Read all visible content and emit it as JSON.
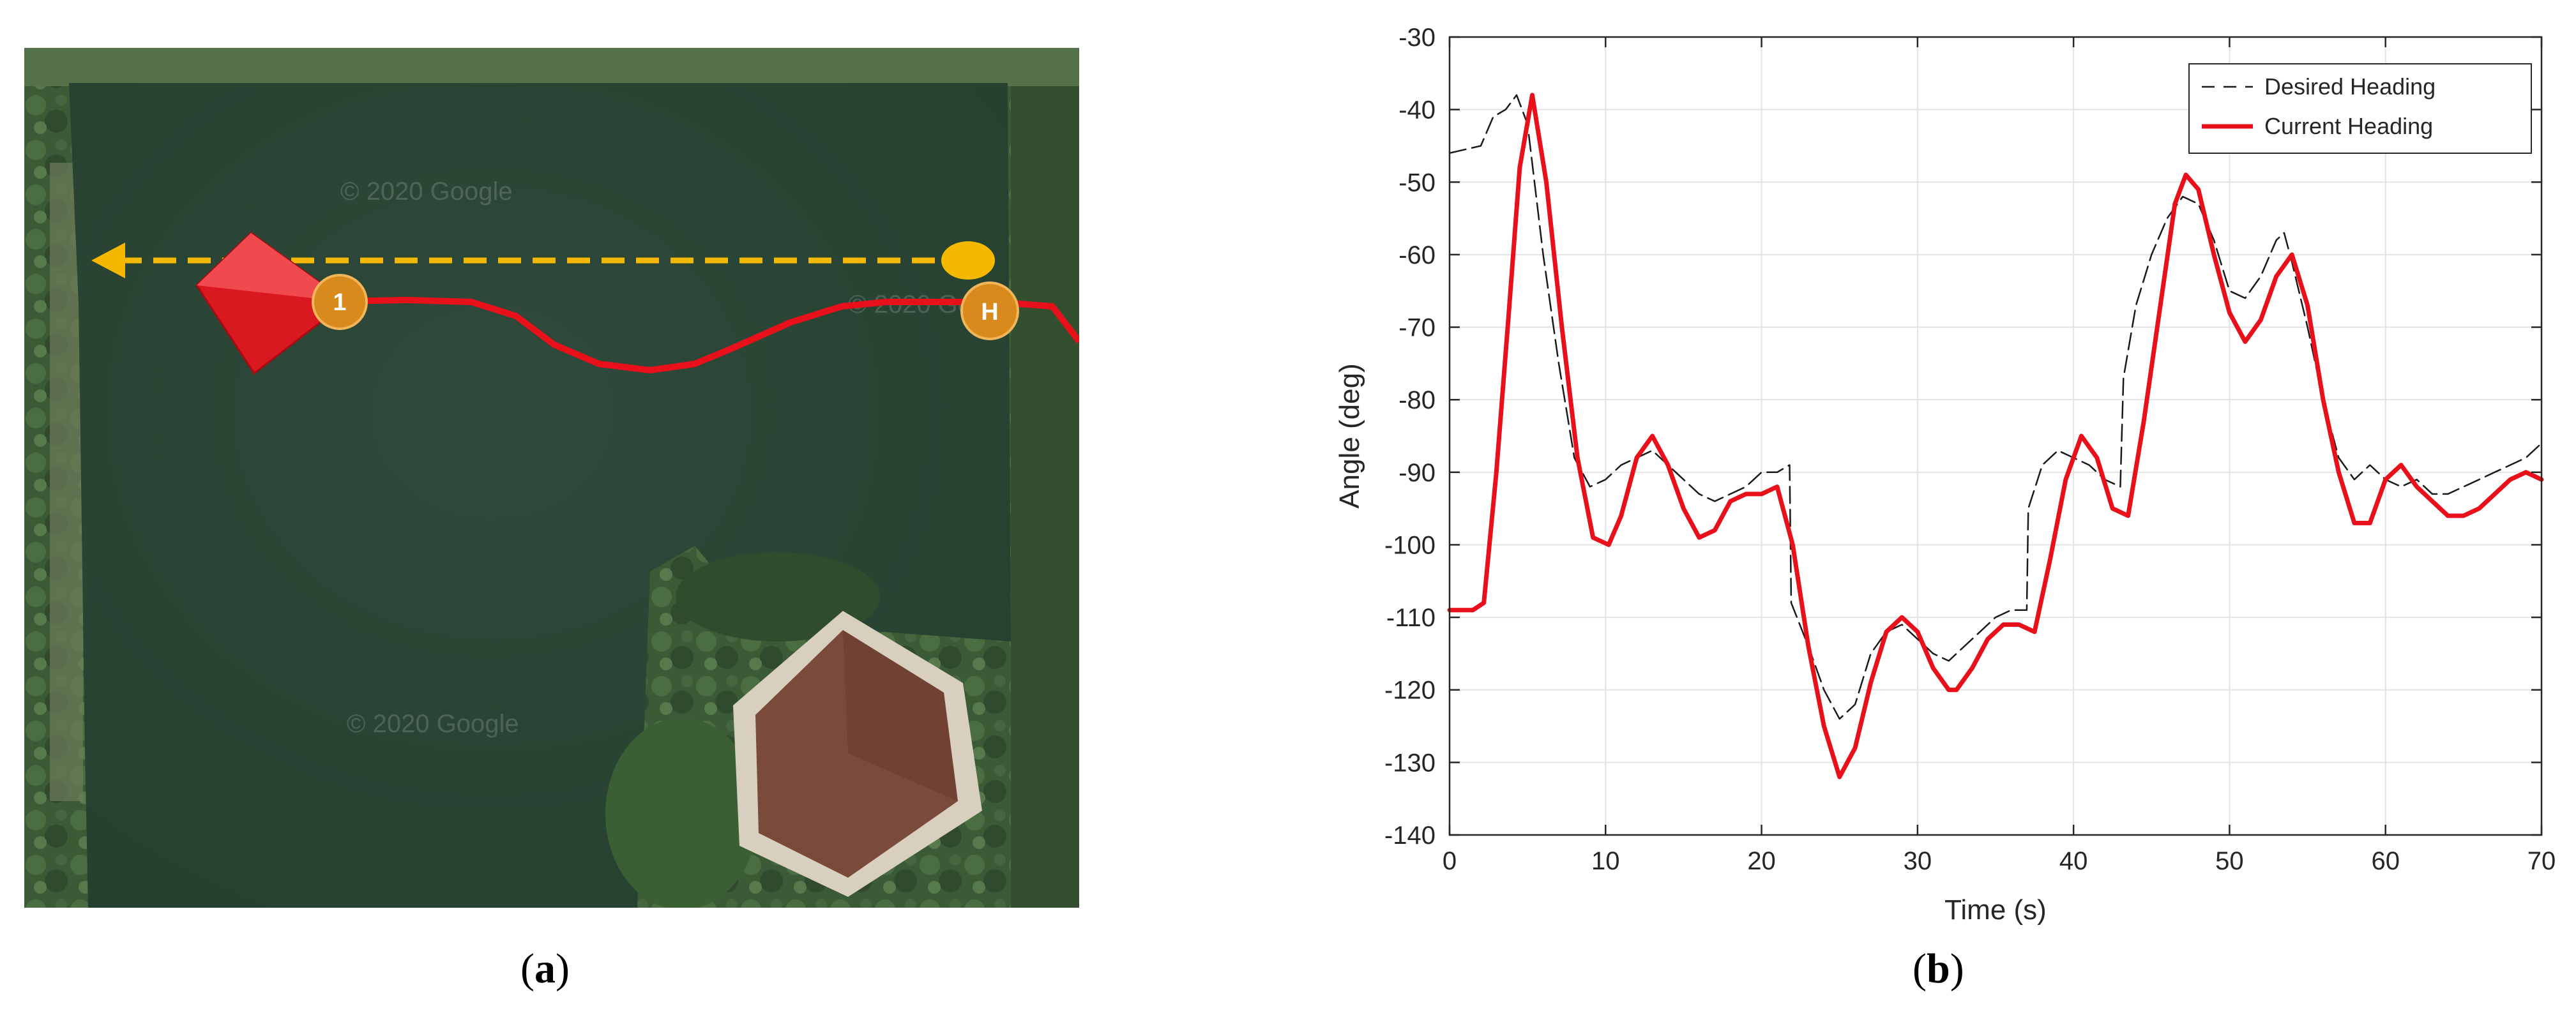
{
  "panels": {
    "a": {
      "caption_open": "(",
      "caption_letter": "a",
      "caption_close": ")"
    },
    "b": {
      "caption_open": "(",
      "caption_letter": "b",
      "caption_close": ")"
    }
  },
  "map": {
    "watermark_1": "© 2020 Google",
    "watermark_2": "© 2020 Google",
    "watermark_3": "© 2020 Google",
    "waypoint_1_label": "1",
    "home_label": "H",
    "colors": {
      "water": "#2b4535",
      "vegetation": "#3c5a37",
      "desired_path": "#f5b800",
      "actual_path": "#e8101a",
      "waypoint": "#d98a1c",
      "roof": "#7a4a3a"
    }
  },
  "chart_data": {
    "type": "line",
    "xlabel": "Time (s)",
    "ylabel": "Angle (deg)",
    "xlim": [
      0,
      70
    ],
    "ylim": [
      -140,
      -30
    ],
    "xticks": [
      0,
      10,
      20,
      30,
      40,
      50,
      60,
      70
    ],
    "yticks": [
      -30,
      -40,
      -50,
      -60,
      -70,
      -80,
      -90,
      -100,
      -110,
      -120,
      -130,
      -140
    ],
    "grid": true,
    "legend_position": "top-right",
    "series": [
      {
        "name": "Desired Heading",
        "style": "dashed",
        "color": "#1a1a1a",
        "x": [
          0,
          2,
          2.8,
          3.6,
          4.3,
          5,
          6,
          7,
          8,
          9,
          10,
          11,
          12,
          13,
          14,
          15,
          16,
          17,
          18,
          19,
          20,
          21,
          21.8,
          21.9,
          23,
          24,
          25,
          26,
          27,
          28,
          29,
          30,
          31,
          32,
          33,
          34,
          35,
          36,
          37,
          37.1,
          38,
          39,
          40,
          41,
          42,
          43,
          43.2,
          44,
          45,
          46,
          47,
          48,
          49,
          50,
          51,
          52,
          53,
          53.5,
          54,
          55,
          56,
          57,
          58,
          59,
          60,
          61,
          62,
          63,
          64,
          65,
          66,
          67,
          68,
          69,
          70
        ],
        "y": [
          -46,
          -45,
          -41,
          -40,
          -38,
          -42,
          -60,
          -75,
          -88,
          -92,
          -91,
          -89,
          -88,
          -87,
          -89,
          -91,
          -93,
          -94,
          -93,
          -92,
          -90,
          -90,
          -89,
          -108,
          -114,
          -120,
          -124,
          -122,
          -115,
          -112,
          -111,
          -113,
          -115,
          -116,
          -114,
          -112,
          -110,
          -109,
          -109,
          -95,
          -89,
          -87,
          -88,
          -89,
          -91,
          -92,
          -77,
          -67,
          -60,
          -55,
          -52,
          -53,
          -58,
          -65,
          -66,
          -63,
          -58,
          -57,
          -61,
          -70,
          -80,
          -88,
          -91,
          -89,
          -91,
          -92,
          -91,
          -93,
          -93,
          -92,
          -91,
          -90,
          -89,
          -88,
          -86
        ]
      },
      {
        "name": "Current Heading",
        "style": "solid",
        "color": "#e8101a",
        "x": [
          0,
          1.5,
          2.2,
          3,
          3.8,
          4.5,
          5.3,
          6.2,
          7.2,
          8.2,
          9.2,
          10.2,
          11,
          12,
          13,
          14,
          15,
          16,
          17,
          18,
          19,
          20,
          21,
          22,
          23,
          24,
          25,
          26,
          27,
          28,
          29,
          30,
          31,
          32,
          32.5,
          33.5,
          34.5,
          35.5,
          36.5,
          37.5,
          38.5,
          39.5,
          40.5,
          41.5,
          42.5,
          43.5,
          44.5,
          45.5,
          46.5,
          47.2,
          48,
          49,
          50,
          51,
          52,
          53,
          54,
          55,
          56,
          57,
          58,
          59,
          60,
          61,
          62,
          63,
          64,
          65,
          66,
          67,
          68,
          69,
          70
        ],
        "y": [
          -109,
          -109,
          -108,
          -90,
          -68,
          -48,
          -38,
          -50,
          -70,
          -88,
          -99,
          -100,
          -96,
          -88,
          -85,
          -89,
          -95,
          -99,
          -98,
          -94,
          -93,
          -93,
          -92,
          -100,
          -114,
          -125,
          -132,
          -128,
          -119,
          -112,
          -110,
          -112,
          -117,
          -120,
          -120,
          -117,
          -113,
          -111,
          -111,
          -112,
          -102,
          -91,
          -85,
          -88,
          -95,
          -96,
          -83,
          -68,
          -53,
          -49,
          -51,
          -60,
          -68,
          -72,
          -69,
          -63,
          -60,
          -67,
          -80,
          -90,
          -97,
          -97,
          -91,
          -89,
          -92,
          -94,
          -96,
          -96,
          -95,
          -93,
          -91,
          -90,
          -91
        ]
      }
    ]
  }
}
